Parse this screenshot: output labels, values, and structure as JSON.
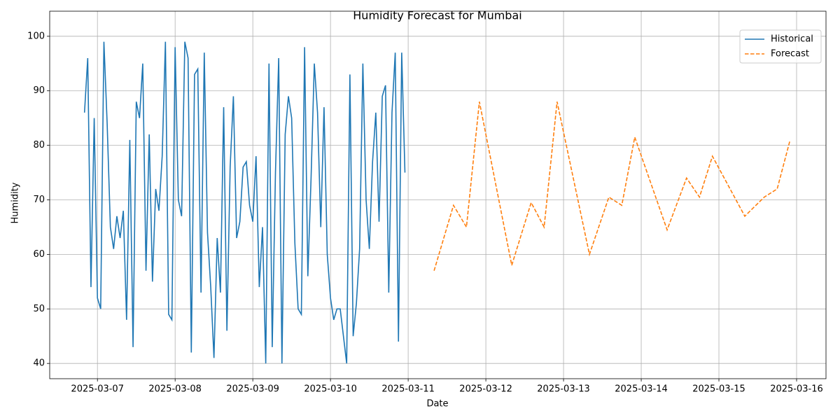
{
  "chart_data": {
    "type": "line",
    "title": "Humidity Forecast for Mumbai",
    "x_label": "Date",
    "y_label": "Humidity",
    "xlim": [
      "2025-03-06 09:15",
      "2025-03-16 09:05"
    ],
    "xticks": [
      "2025-03-07",
      "2025-03-08",
      "2025-03-09",
      "2025-03-10",
      "2025-03-11",
      "2025-03-12",
      "2025-03-13",
      "2025-03-14",
      "2025-03-15",
      "2025-03-16"
    ],
    "ylim": [
      37.2,
      104.6
    ],
    "yticks": [
      40,
      50,
      60,
      70,
      80,
      90,
      100
    ],
    "grid": true,
    "legend": "upper right",
    "series": [
      {
        "name": "Historical",
        "color": "#1f77b4",
        "dash": "solid",
        "x": [
          "2025-03-06 20:00",
          "2025-03-06 21:00",
          "2025-03-06 22:00",
          "2025-03-06 23:00",
          "2025-03-07 00:00",
          "2025-03-07 01:00",
          "2025-03-07 02:00",
          "2025-03-07 03:00",
          "2025-03-07 04:00",
          "2025-03-07 05:00",
          "2025-03-07 06:00",
          "2025-03-07 07:00",
          "2025-03-07 08:00",
          "2025-03-07 09:00",
          "2025-03-07 10:00",
          "2025-03-07 11:00",
          "2025-03-07 12:00",
          "2025-03-07 13:00",
          "2025-03-07 14:00",
          "2025-03-07 15:00",
          "2025-03-07 16:00",
          "2025-03-07 17:00",
          "2025-03-07 18:00",
          "2025-03-07 19:00",
          "2025-03-07 20:00",
          "2025-03-07 21:00",
          "2025-03-07 22:00",
          "2025-03-07 23:00",
          "2025-03-08 00:00",
          "2025-03-08 01:00",
          "2025-03-08 02:00",
          "2025-03-08 03:00",
          "2025-03-08 04:00",
          "2025-03-08 05:00",
          "2025-03-08 06:00",
          "2025-03-08 07:00",
          "2025-03-08 08:00",
          "2025-03-08 09:00",
          "2025-03-08 10:00",
          "2025-03-08 11:00",
          "2025-03-08 12:00",
          "2025-03-08 13:00",
          "2025-03-08 14:00",
          "2025-03-08 15:00",
          "2025-03-08 16:00",
          "2025-03-08 17:00",
          "2025-03-08 18:00",
          "2025-03-08 19:00",
          "2025-03-08 20:00",
          "2025-03-08 21:00",
          "2025-03-08 22:00",
          "2025-03-08 23:00",
          "2025-03-09 00:00",
          "2025-03-09 01:00",
          "2025-03-09 02:00",
          "2025-03-09 03:00",
          "2025-03-09 04:00",
          "2025-03-09 05:00",
          "2025-03-09 06:00",
          "2025-03-09 07:00",
          "2025-03-09 08:00",
          "2025-03-09 09:00",
          "2025-03-09 10:00",
          "2025-03-09 11:00",
          "2025-03-09 12:00",
          "2025-03-09 13:00",
          "2025-03-09 14:00",
          "2025-03-09 15:00",
          "2025-03-09 16:00",
          "2025-03-09 17:00",
          "2025-03-09 18:00",
          "2025-03-09 19:00",
          "2025-03-09 20:00",
          "2025-03-09 21:00",
          "2025-03-09 22:00",
          "2025-03-09 23:00",
          "2025-03-10 00:00",
          "2025-03-10 01:00",
          "2025-03-10 02:00",
          "2025-03-10 03:00",
          "2025-03-10 04:00",
          "2025-03-10 05:00",
          "2025-03-10 06:00",
          "2025-03-10 07:00",
          "2025-03-10 08:00",
          "2025-03-10 09:00",
          "2025-03-10 10:00",
          "2025-03-10 11:00",
          "2025-03-10 12:00",
          "2025-03-10 13:00",
          "2025-03-10 14:00",
          "2025-03-10 15:00",
          "2025-03-10 16:00",
          "2025-03-10 17:00",
          "2025-03-10 18:00",
          "2025-03-10 19:00",
          "2025-03-10 20:00",
          "2025-03-10 21:00",
          "2025-03-10 22:00",
          "2025-03-10 23:00"
        ],
        "values": [
          86,
          96,
          54,
          85,
          52,
          50,
          99,
          84,
          65,
          61,
          67,
          63,
          68,
          48,
          81,
          43,
          88,
          85,
          95,
          57,
          82,
          55,
          72,
          68,
          78,
          99,
          49,
          48,
          98,
          70,
          67,
          99,
          96,
          42,
          93,
          94,
          53,
          97,
          64,
          54,
          41,
          63,
          53,
          87,
          46,
          76,
          89,
          63,
          66,
          76,
          77,
          69,
          66,
          78,
          54,
          65,
          40,
          95,
          43,
          75,
          96,
          40,
          82,
          89,
          85,
          62,
          50,
          49,
          98,
          56,
          74,
          95,
          86,
          65,
          87,
          60,
          52,
          48,
          50,
          50,
          45,
          40,
          93,
          45,
          51,
          61,
          95,
          70,
          61,
          77,
          86,
          66,
          89,
          91,
          53,
          86,
          97,
          44,
          97,
          75
        ]
      },
      {
        "name": "Forecast",
        "color": "#ff7f0e",
        "dash": "dashed",
        "x": [
          "2025-03-11 08:00",
          "2025-03-11 14:00",
          "2025-03-11 18:00",
          "2025-03-11 22:00",
          "2025-03-12 08:00",
          "2025-03-12 14:00",
          "2025-03-12 18:00",
          "2025-03-12 22:00",
          "2025-03-13 08:00",
          "2025-03-13 14:00",
          "2025-03-13 18:00",
          "2025-03-13 22:00",
          "2025-03-14 08:00",
          "2025-03-14 14:00",
          "2025-03-14 18:00",
          "2025-03-14 22:00",
          "2025-03-15 08:00",
          "2025-03-15 14:00",
          "2025-03-15 18:00",
          "2025-03-15 22:00"
        ],
        "values": [
          57,
          69,
          65,
          88,
          58,
          69.5,
          65,
          88,
          60,
          70.5,
          69,
          81.5,
          64.5,
          74,
          70.5,
          78,
          67,
          70.5,
          72,
          81
        ]
      }
    ]
  }
}
